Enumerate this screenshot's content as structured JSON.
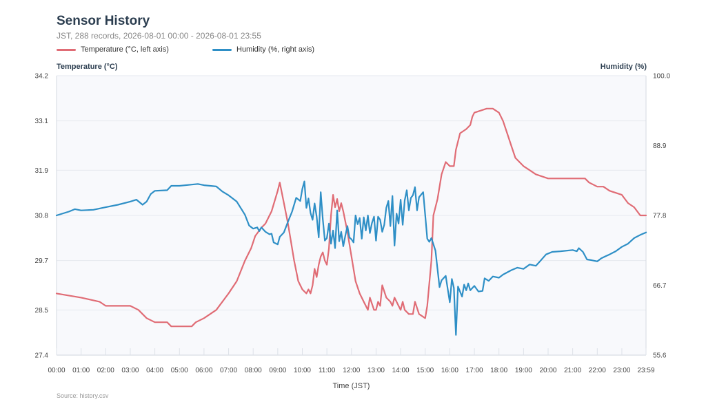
{
  "header": {
    "title": "Sensor History",
    "subtitle": "JST, 288 records, 2026-08-01 00:00 - 2026-08-01 23:55"
  },
  "footer": {
    "source": "Source: history.csv"
  },
  "colors": {
    "temperature": "#e06c75",
    "humidity": "#2e8fc6",
    "plot_bg": "#f8f9fc",
    "grid": "#e6e9ef"
  },
  "chart_data": {
    "type": "line",
    "title": "Sensor History",
    "subtitle": "JST, 288 records, 2026-08-01 00:00 - 2026-08-01 23:55",
    "xlabel": "Time (JST)",
    "xlim": [
      "00:00",
      "23:59"
    ],
    "x_ticks": [
      "00:00",
      "01:00",
      "02:00",
      "03:00",
      "04:00",
      "05:00",
      "06:00",
      "07:00",
      "08:00",
      "09:00",
      "10:00",
      "11:00",
      "12:00",
      "13:00",
      "14:00",
      "15:00",
      "16:00",
      "17:00",
      "18:00",
      "19:00",
      "20:00",
      "21:00",
      "22:00",
      "23:00",
      "23:59"
    ],
    "y_left": {
      "label": "Temperature (°C)",
      "range": [
        27.4,
        34.2
      ],
      "ticks": [
        "27.4",
        "28.5",
        "29.7",
        "30.8",
        "31.9",
        "33.1",
        "34.2"
      ]
    },
    "y_right": {
      "label": "Humidity (%)",
      "range": [
        55.6,
        100.0
      ],
      "ticks": [
        "55.6",
        "66.7",
        "77.8",
        "88.9",
        "100.0"
      ]
    },
    "grid": true,
    "legend": {
      "placement": "top-left"
    },
    "series": [
      {
        "name": "Temperature (°C, left axis)",
        "axis": "left",
        "points": [
          [
            "00:00",
            28.9
          ],
          [
            "01:00",
            28.8
          ],
          [
            "01:45",
            28.7
          ],
          [
            "02:00",
            28.6
          ],
          [
            "03:00",
            28.6
          ],
          [
            "03:20",
            28.5
          ],
          [
            "03:40",
            28.3
          ],
          [
            "04:00",
            28.2
          ],
          [
            "04:30",
            28.2
          ],
          [
            "04:40",
            28.1
          ],
          [
            "05:00",
            28.1
          ],
          [
            "05:30",
            28.1
          ],
          [
            "05:40",
            28.2
          ],
          [
            "06:00",
            28.3
          ],
          [
            "06:30",
            28.5
          ],
          [
            "07:00",
            28.9
          ],
          [
            "07:20",
            29.2
          ],
          [
            "07:40",
            29.7
          ],
          [
            "07:55",
            30.0
          ],
          [
            "08:05",
            30.3
          ],
          [
            "08:20",
            30.5
          ],
          [
            "08:30",
            30.6
          ],
          [
            "08:45",
            30.9
          ],
          [
            "09:00",
            31.4
          ],
          [
            "09:05",
            31.6
          ],
          [
            "09:15",
            31.1
          ],
          [
            "09:25",
            30.6
          ],
          [
            "09:40",
            29.7
          ],
          [
            "09:50",
            29.2
          ],
          [
            "10:00",
            29.0
          ],
          [
            "10:10",
            28.9
          ],
          [
            "10:15",
            29.0
          ],
          [
            "10:20",
            28.9
          ],
          [
            "10:25",
            29.1
          ],
          [
            "10:30",
            29.5
          ],
          [
            "10:35",
            29.3
          ],
          [
            "10:40",
            29.6
          ],
          [
            "10:45",
            29.8
          ],
          [
            "10:50",
            29.9
          ],
          [
            "10:55",
            29.7
          ],
          [
            "11:00",
            29.6
          ],
          [
            "11:05",
            30.0
          ],
          [
            "11:10",
            30.8
          ],
          [
            "11:15",
            31.3
          ],
          [
            "11:20",
            31.0
          ],
          [
            "11:25",
            31.2
          ],
          [
            "11:30",
            30.9
          ],
          [
            "11:35",
            31.1
          ],
          [
            "11:40",
            30.9
          ],
          [
            "11:50",
            30.4
          ],
          [
            "12:00",
            29.8
          ],
          [
            "12:10",
            29.2
          ],
          [
            "12:20",
            28.9
          ],
          [
            "12:30",
            28.7
          ],
          [
            "12:40",
            28.5
          ],
          [
            "12:45",
            28.8
          ],
          [
            "12:55",
            28.5
          ],
          [
            "13:00",
            28.5
          ],
          [
            "13:05",
            28.7
          ],
          [
            "13:10",
            28.6
          ],
          [
            "13:15",
            29.1
          ],
          [
            "13:25",
            28.8
          ],
          [
            "13:35",
            28.7
          ],
          [
            "13:40",
            28.6
          ],
          [
            "13:45",
            28.8
          ],
          [
            "13:55",
            28.6
          ],
          [
            "14:00",
            28.5
          ],
          [
            "14:05",
            28.7
          ],
          [
            "14:10",
            28.5
          ],
          [
            "14:20",
            28.4
          ],
          [
            "14:30",
            28.4
          ],
          [
            "14:35",
            28.7
          ],
          [
            "14:45",
            28.4
          ],
          [
            "15:00",
            28.3
          ],
          [
            "15:05",
            28.6
          ],
          [
            "15:15",
            29.7
          ],
          [
            "15:20",
            30.8
          ],
          [
            "15:30",
            31.2
          ],
          [
            "15:40",
            31.8
          ],
          [
            "15:50",
            32.1
          ],
          [
            "16:00",
            32.0
          ],
          [
            "16:10",
            32.0
          ],
          [
            "16:15",
            32.4
          ],
          [
            "16:25",
            32.8
          ],
          [
            "16:40",
            32.9
          ],
          [
            "16:50",
            33.0
          ],
          [
            "16:55",
            33.2
          ],
          [
            "17:00",
            33.3
          ],
          [
            "17:30",
            33.4
          ],
          [
            "17:45",
            33.4
          ],
          [
            "18:00",
            33.3
          ],
          [
            "18:10",
            33.1
          ],
          [
            "18:20",
            32.8
          ],
          [
            "18:30",
            32.5
          ],
          [
            "18:40",
            32.2
          ],
          [
            "18:50",
            32.1
          ],
          [
            "19:00",
            32.0
          ],
          [
            "19:15",
            31.9
          ],
          [
            "19:30",
            31.8
          ],
          [
            "20:00",
            31.7
          ],
          [
            "20:30",
            31.7
          ],
          [
            "21:00",
            31.7
          ],
          [
            "21:30",
            31.7
          ],
          [
            "21:40",
            31.6
          ],
          [
            "22:00",
            31.5
          ],
          [
            "22:15",
            31.5
          ],
          [
            "22:30",
            31.4
          ],
          [
            "23:00",
            31.3
          ],
          [
            "23:15",
            31.1
          ],
          [
            "23:30",
            31.0
          ],
          [
            "23:45",
            30.8
          ],
          [
            "23:59",
            30.8
          ]
        ]
      },
      {
        "name": "Humidity (%, right axis)",
        "axis": "right",
        "points": [
          [
            "00:00",
            77.8
          ],
          [
            "00:30",
            78.4
          ],
          [
            "00:45",
            78.8
          ],
          [
            "01:00",
            78.6
          ],
          [
            "01:30",
            78.7
          ],
          [
            "02:00",
            79.1
          ],
          [
            "02:30",
            79.5
          ],
          [
            "03:00",
            80.0
          ],
          [
            "03:15",
            80.3
          ],
          [
            "03:30",
            79.5
          ],
          [
            "03:40",
            80.0
          ],
          [
            "03:50",
            81.2
          ],
          [
            "04:00",
            81.7
          ],
          [
            "04:30",
            81.8
          ],
          [
            "04:40",
            82.5
          ],
          [
            "05:00",
            82.5
          ],
          [
            "05:30",
            82.7
          ],
          [
            "05:45",
            82.8
          ],
          [
            "06:00",
            82.6
          ],
          [
            "06:30",
            82.4
          ],
          [
            "06:45",
            81.6
          ],
          [
            "07:00",
            81.0
          ],
          [
            "07:20",
            80.0
          ],
          [
            "07:40",
            77.9
          ],
          [
            "07:50",
            76.2
          ],
          [
            "08:00",
            75.7
          ],
          [
            "08:10",
            75.9
          ],
          [
            "08:15",
            75.3
          ],
          [
            "08:20",
            75.9
          ],
          [
            "08:30",
            75.2
          ],
          [
            "08:40",
            74.8
          ],
          [
            "08:45",
            74.9
          ],
          [
            "08:50",
            73.5
          ],
          [
            "09:00",
            73.2
          ],
          [
            "09:05",
            74.4
          ],
          [
            "09:15",
            75.1
          ],
          [
            "09:25",
            76.8
          ],
          [
            "09:35",
            78.4
          ],
          [
            "09:45",
            80.6
          ],
          [
            "09:55",
            80.1
          ],
          [
            "10:00",
            82.0
          ],
          [
            "10:05",
            83.2
          ],
          [
            "10:10",
            79.0
          ],
          [
            "10:15",
            80.5
          ],
          [
            "10:20",
            78.2
          ],
          [
            "10:25",
            77.1
          ],
          [
            "10:30",
            79.7
          ],
          [
            "10:35",
            77.6
          ],
          [
            "10:40",
            74.3
          ],
          [
            "10:45",
            81.5
          ],
          [
            "10:50",
            77.2
          ],
          [
            "10:55",
            73.8
          ],
          [
            "11:00",
            74.2
          ],
          [
            "11:05",
            76.5
          ],
          [
            "11:10",
            73.3
          ],
          [
            "11:15",
            75.4
          ],
          [
            "11:20",
            72.6
          ],
          [
            "11:25",
            78.6
          ],
          [
            "11:30",
            73.7
          ],
          [
            "11:35",
            75.2
          ],
          [
            "11:40",
            72.9
          ],
          [
            "11:45",
            74.6
          ],
          [
            "11:50",
            76.1
          ],
          [
            "11:55",
            74.3
          ],
          [
            "12:00",
            74.0
          ],
          [
            "12:05",
            73.5
          ],
          [
            "12:10",
            77.8
          ],
          [
            "12:15",
            76.4
          ],
          [
            "12:20",
            77.4
          ],
          [
            "12:25",
            74.1
          ],
          [
            "12:30",
            77.5
          ],
          [
            "12:35",
            75.4
          ],
          [
            "12:40",
            77.8
          ],
          [
            "12:45",
            75.0
          ],
          [
            "12:50",
            76.6
          ],
          [
            "12:55",
            77.6
          ],
          [
            "13:00",
            73.8
          ],
          [
            "13:05",
            77.6
          ],
          [
            "13:10",
            77.1
          ],
          [
            "13:15",
            75.2
          ],
          [
            "13:20",
            76.3
          ],
          [
            "13:25",
            79.0
          ],
          [
            "13:30",
            80.1
          ],
          [
            "13:35",
            76.1
          ],
          [
            "13:40",
            80.9
          ],
          [
            "13:45",
            73.0
          ],
          [
            "13:50",
            78.1
          ],
          [
            "13:55",
            76.5
          ],
          [
            "14:00",
            80.3
          ],
          [
            "14:05",
            76.3
          ],
          [
            "14:10",
            80.2
          ],
          [
            "14:15",
            81.8
          ],
          [
            "14:20",
            78.6
          ],
          [
            "14:25",
            80.6
          ],
          [
            "14:30",
            81.0
          ],
          [
            "14:35",
            82.3
          ],
          [
            "14:40",
            78.6
          ],
          [
            "14:45",
            80.7
          ],
          [
            "14:55",
            81.5
          ],
          [
            "15:00",
            77.9
          ],
          [
            "15:05",
            74.1
          ],
          [
            "15:10",
            73.6
          ],
          [
            "15:15",
            74.2
          ],
          [
            "15:25",
            72.2
          ],
          [
            "15:35",
            66.4
          ],
          [
            "15:40",
            67.5
          ],
          [
            "15:50",
            68.2
          ],
          [
            "15:55",
            66.1
          ],
          [
            "16:00",
            64.0
          ],
          [
            "16:05",
            67.7
          ],
          [
            "16:10",
            66.3
          ],
          [
            "16:15",
            58.8
          ],
          [
            "16:20",
            66.5
          ],
          [
            "16:30",
            64.9
          ],
          [
            "16:35",
            66.8
          ],
          [
            "16:40",
            65.9
          ],
          [
            "16:45",
            67.0
          ],
          [
            "16:50",
            65.9
          ],
          [
            "17:00",
            66.6
          ],
          [
            "17:10",
            65.7
          ],
          [
            "17:20",
            65.8
          ],
          [
            "17:25",
            67.8
          ],
          [
            "17:35",
            67.4
          ],
          [
            "17:45",
            68.1
          ],
          [
            "18:00",
            67.9
          ],
          [
            "18:10",
            68.4
          ],
          [
            "18:30",
            69.1
          ],
          [
            "18:45",
            69.5
          ],
          [
            "19:00",
            69.3
          ],
          [
            "19:15",
            70.0
          ],
          [
            "19:30",
            69.8
          ],
          [
            "19:40",
            70.5
          ],
          [
            "19:55",
            71.6
          ],
          [
            "20:10",
            72.0
          ],
          [
            "20:30",
            72.1
          ],
          [
            "21:00",
            72.3
          ],
          [
            "21:10",
            72.1
          ],
          [
            "21:15",
            72.6
          ],
          [
            "21:25",
            72.0
          ],
          [
            "21:35",
            70.8
          ],
          [
            "21:45",
            70.7
          ],
          [
            "22:00",
            70.5
          ],
          [
            "22:10",
            71.0
          ],
          [
            "22:20",
            71.3
          ],
          [
            "22:30",
            71.6
          ],
          [
            "22:45",
            72.1
          ],
          [
            "23:00",
            72.8
          ],
          [
            "23:15",
            73.3
          ],
          [
            "23:30",
            74.2
          ],
          [
            "23:45",
            74.7
          ],
          [
            "23:59",
            75.1
          ]
        ]
      }
    ]
  }
}
